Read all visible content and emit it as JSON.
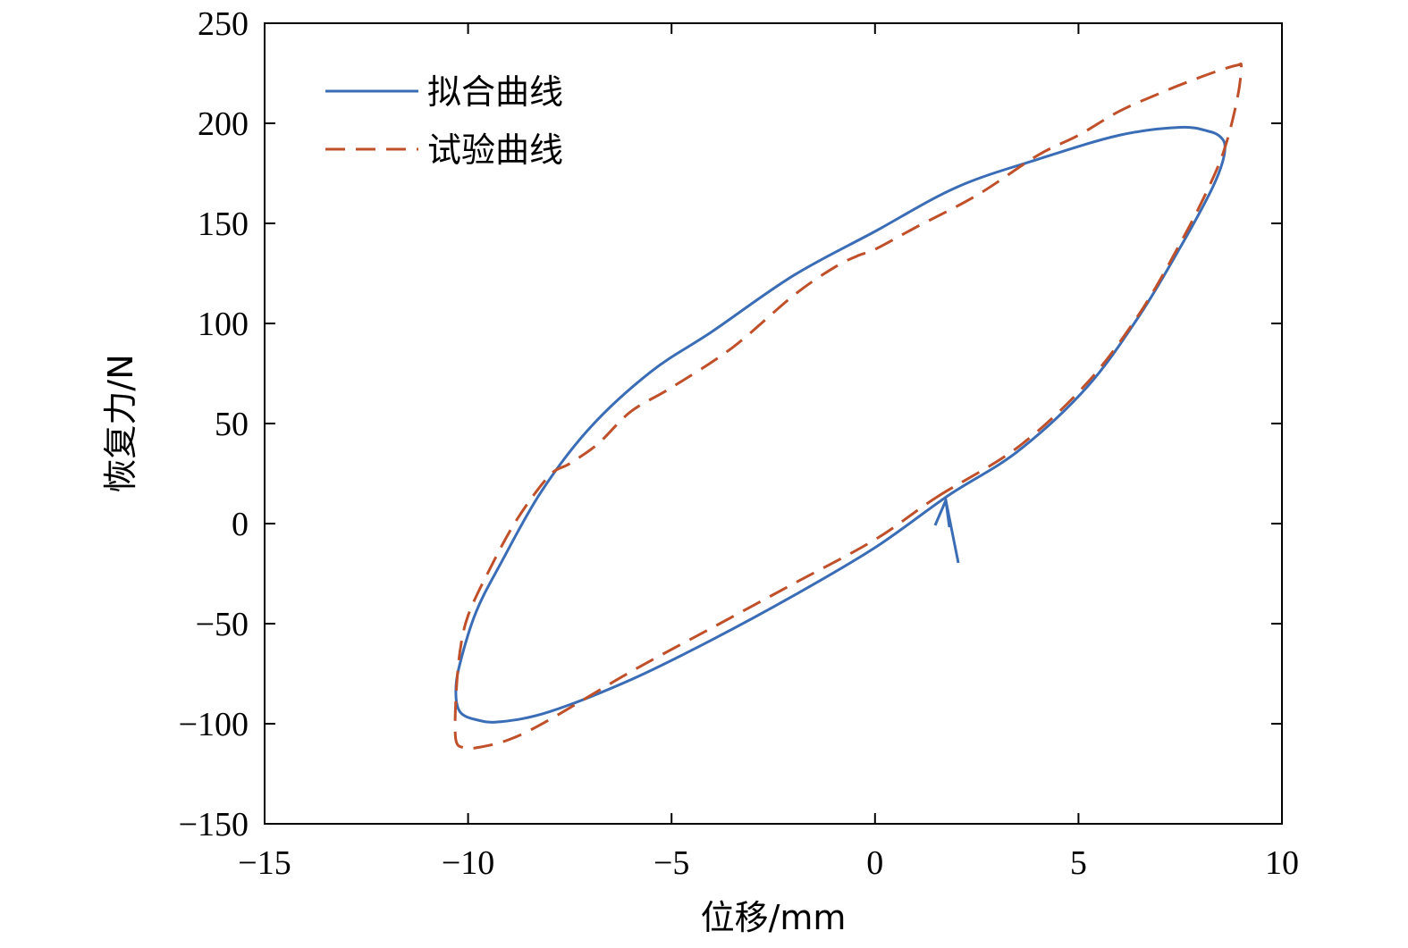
{
  "chart_data": {
    "type": "line",
    "xlabel": "位移/mm",
    "ylabel": "恢复力/N",
    "xlim": [
      -15,
      10
    ],
    "ylim": [
      -150,
      250
    ],
    "xticks": [
      -15,
      -10,
      -5,
      0,
      5,
      10
    ],
    "yticks": [
      -150,
      -100,
      -50,
      0,
      50,
      100,
      150,
      200,
      250
    ],
    "xtick_labels": [
      "−15",
      "−10",
      "−5",
      "0",
      "5",
      "10"
    ],
    "ytick_labels": [
      "−150",
      "−100",
      "−50",
      "0",
      "50",
      "100",
      "150",
      "200",
      "250"
    ],
    "grid": false,
    "legend_position": "top-left",
    "series": [
      {
        "name": "拟合曲线",
        "style": "solid",
        "color": "#3a6db5",
        "x": [
          1.8,
          3.5,
          5.2,
          6.5,
          7.5,
          8.2,
          8.5,
          8.6,
          8.5,
          8.2,
          7.5,
          6.0,
          4.0,
          2.0,
          0.0,
          -2.0,
          -4.0,
          -5.5,
          -7.0,
          -8.2,
          -9.2,
          -9.8,
          -10.2,
          -10.3,
          -10.2,
          -9.8,
          -9.2,
          -8.0,
          -6.0,
          -4.0,
          -2.0,
          0.0,
          1.8
        ],
        "y": [
          14,
          36,
          68,
          104,
          138,
          164,
          178,
          188,
          193,
          196,
          198,
          194,
          182,
          168,
          146,
          124,
          96,
          76,
          48,
          16,
          -20,
          -44,
          -70,
          -84,
          -94,
          -98,
          -99,
          -94,
          -78,
          -58,
          -36,
          -12,
          14
        ]
      },
      {
        "name": "试验曲线",
        "style": "dashed",
        "color": "#c0502a",
        "x": [
          1.5,
          3.5,
          5.2,
          6.5,
          7.5,
          8.2,
          8.6,
          8.9,
          9.0,
          8.9,
          8.4,
          7.6,
          7.0,
          6.0,
          5.0,
          4.0,
          2.5,
          1.0,
          0.0,
          -0.4,
          -1.0,
          -2.0,
          -3.5,
          -5.0,
          -6.0,
          -6.8,
          -7.5,
          -8.0,
          -8.8,
          -9.5,
          -10.0,
          -10.2,
          -10.3,
          -10.3,
          -10.1,
          -9.8,
          -9.0,
          -8.0,
          -6.0,
          -4.0,
          -2.0,
          0.0,
          1.5
        ],
        "y": [
          13,
          38,
          70,
          105,
          140,
          168,
          188,
          212,
          228,
          229,
          226,
          220,
          215,
          206,
          194,
          184,
          164,
          148,
          137,
          134,
          128,
          114,
          88,
          68,
          56,
          40,
          30,
          24,
          2,
          -24,
          -46,
          -64,
          -88,
          -108,
          -112,
          -112,
          -108,
          -98,
          -74,
          -52,
          -30,
          -8,
          13
        ]
      }
    ]
  }
}
